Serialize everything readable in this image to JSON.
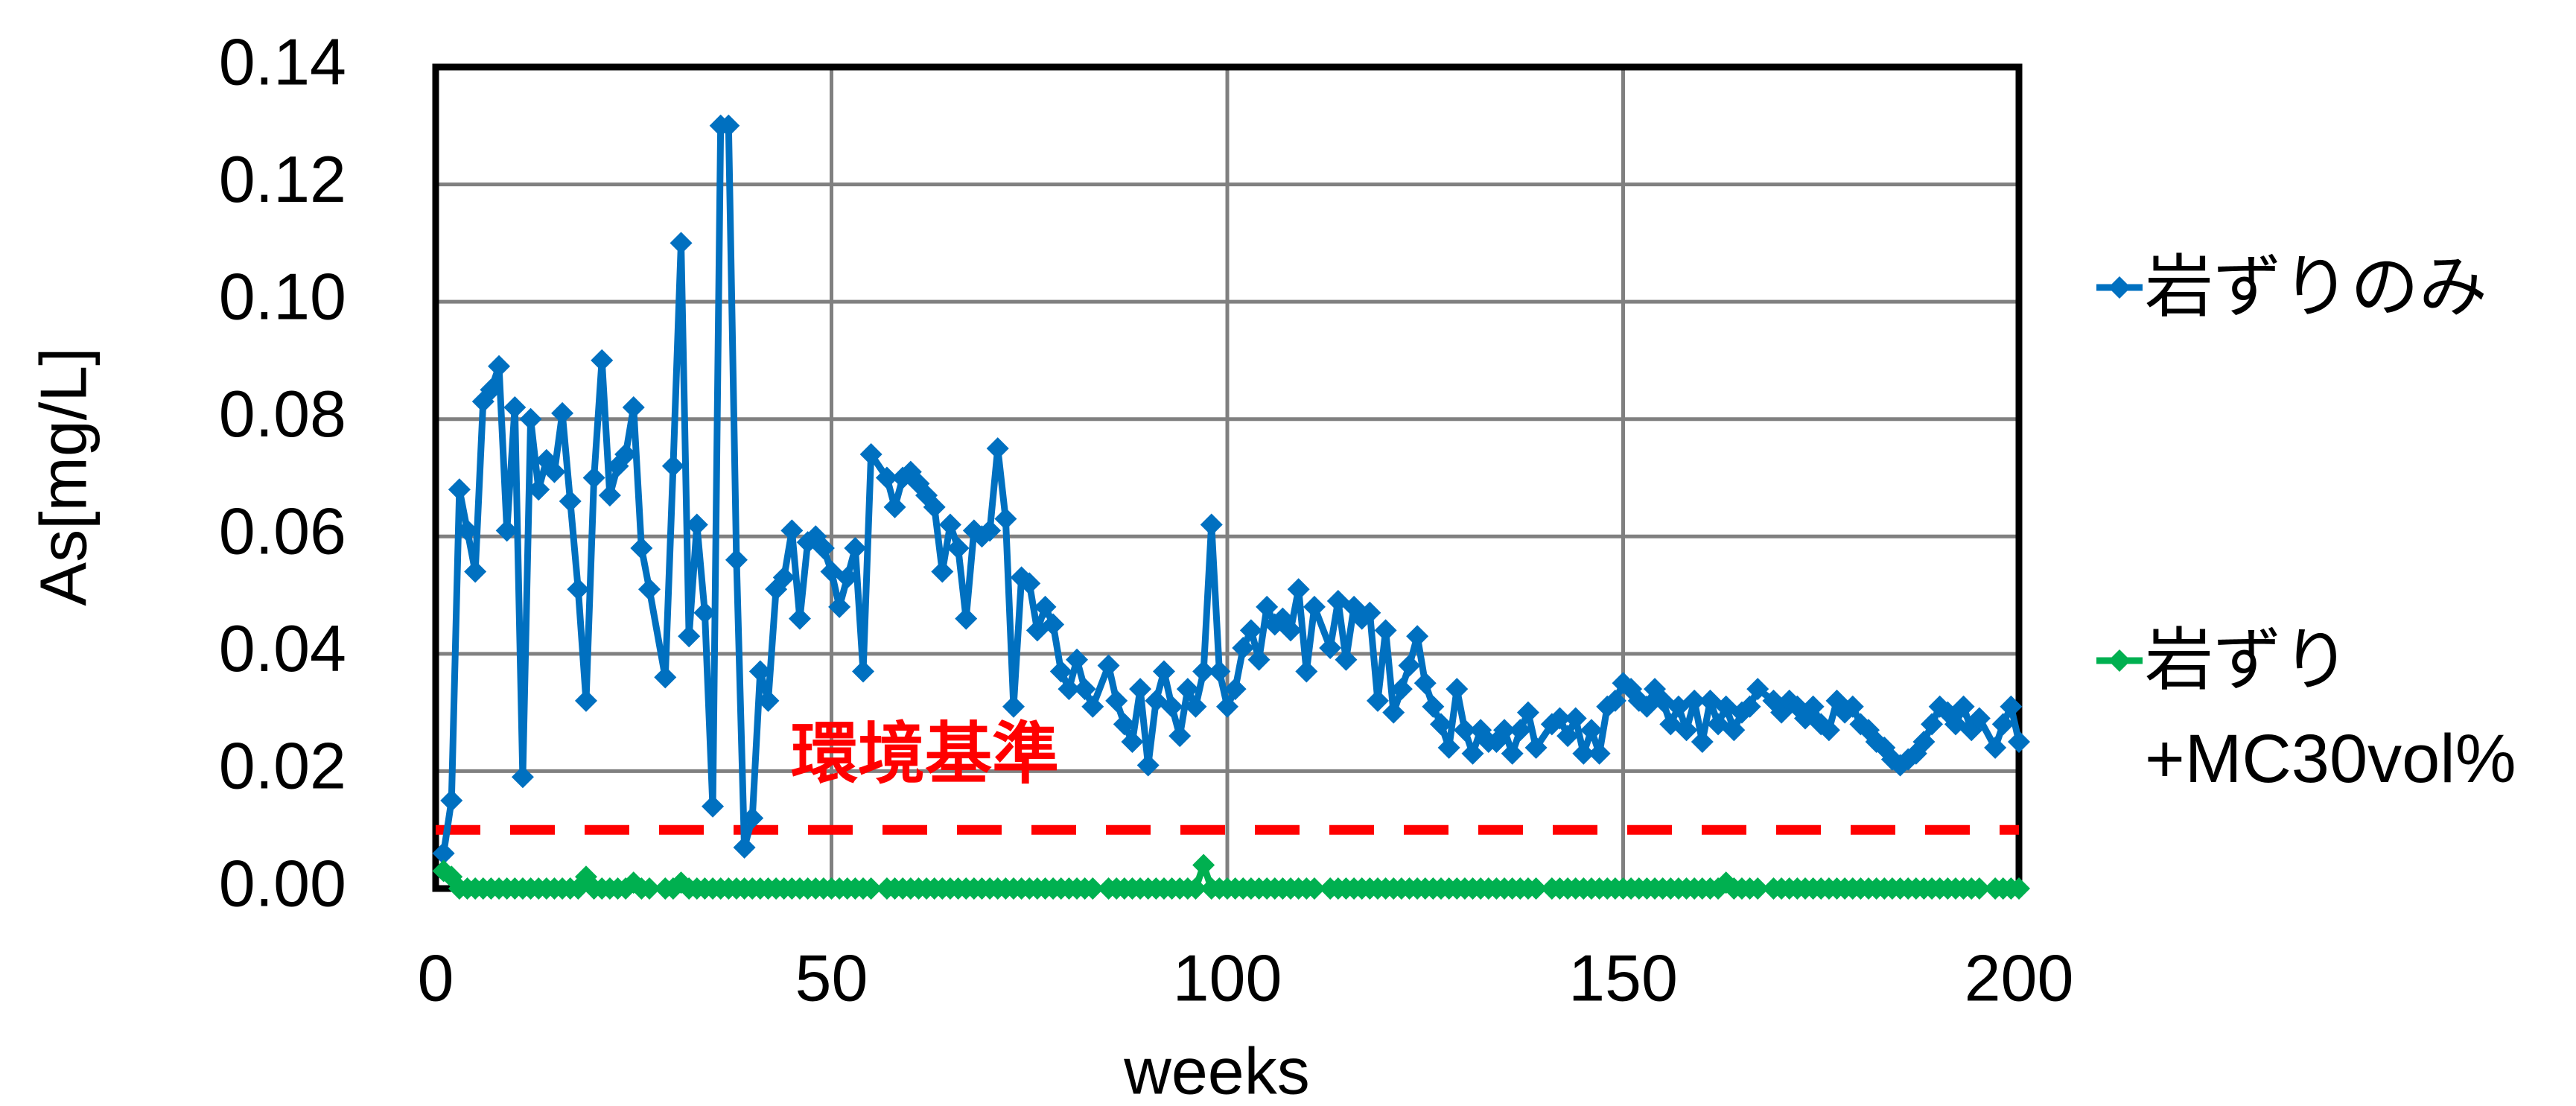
{
  "chart_data": {
    "type": "line",
    "x_label": "weeks",
    "y_label": "As[mg/L]",
    "xlim": [
      0,
      200
    ],
    "xticks": [
      0,
      50,
      100,
      150,
      200
    ],
    "ylim": [
      0,
      0.14
    ],
    "yticks": [
      {
        "value": 0,
        "label": "0.00"
      },
      {
        "value": 0.02,
        "label": "0.02"
      },
      {
        "value": 0.04,
        "label": "0.04"
      },
      {
        "value": 0.06,
        "label": "0.06"
      },
      {
        "value": 0.08,
        "label": "0.08"
      },
      {
        "value": 0.1,
        "label": "0.10"
      },
      {
        "value": 0.12,
        "label": "0.12"
      },
      {
        "value": 0.14,
        "label": "0.14"
      }
    ],
    "grid": true,
    "legend": "right",
    "reference_line": {
      "value": 0.01,
      "label": "環境基準",
      "color": "#ff0000"
    },
    "x": [
      1,
      2,
      3,
      4,
      5,
      6,
      7,
      8,
      9,
      10,
      11,
      12,
      13,
      14,
      15,
      16,
      17,
      18,
      19,
      20,
      21,
      22,
      23,
      24,
      25,
      26,
      27,
      29,
      30,
      31,
      32,
      33,
      34,
      35,
      36,
      37,
      38,
      39,
      40,
      41,
      42,
      43,
      44,
      45,
      46,
      47,
      48,
      49,
      50,
      51,
      52,
      53,
      54,
      55,
      57,
      58,
      59,
      60,
      61,
      62,
      63,
      64,
      65,
      66,
      67,
      68,
      69,
      70,
      71,
      72,
      73,
      74,
      75,
      76,
      77,
      78,
      79,
      80,
      81,
      82,
      83,
      85,
      86,
      87,
      88,
      89,
      90,
      91,
      92,
      93,
      94,
      95,
      96,
      97,
      98,
      99,
      100,
      101,
      102,
      103,
      104,
      105,
      106,
      107,
      108,
      109,
      110,
      111,
      113,
      114,
      115,
      116,
      117,
      118,
      119,
      120,
      121,
      122,
      123,
      124,
      125,
      126,
      127,
      128,
      129,
      130,
      131,
      132,
      133,
      134,
      135,
      136,
      137,
      138,
      139,
      141,
      142,
      143,
      144,
      145,
      146,
      147,
      148,
      149,
      150,
      151,
      152,
      153,
      154,
      155,
      156,
      157,
      158,
      159,
      160,
      161,
      162,
      163,
      164,
      165,
      166,
      167,
      169,
      170,
      171,
      172,
      173,
      174,
      175,
      176,
      177,
      178,
      179,
      180,
      181,
      182,
      183,
      184,
      185,
      186,
      187,
      188,
      189,
      190,
      191,
      192,
      193,
      194,
      195,
      197,
      198,
      199,
      200
    ],
    "series": [
      {
        "name": "岩ずりのみ",
        "color": "#0070c0",
        "values": [
          0.006,
          0.015,
          0.068,
          0.061,
          0.054,
          0.083,
          0.085,
          0.089,
          0.061,
          0.082,
          0.019,
          0.08,
          0.068,
          0.073,
          0.071,
          0.081,
          0.066,
          0.051,
          0.032,
          0.07,
          0.09,
          0.067,
          0.072,
          0.074,
          0.082,
          0.058,
          0.051,
          0.036,
          0.072,
          0.11,
          0.043,
          0.062,
          0.047,
          0.014,
          0.13,
          0.13,
          0.056,
          0.007,
          0.012,
          0.037,
          0.032,
          0.051,
          0.053,
          0.061,
          0.046,
          0.059,
          0.06,
          0.058,
          0.054,
          0.048,
          0.053,
          0.058,
          0.037,
          0.074,
          0.07,
          0.065,
          0.07,
          0.071,
          0.069,
          0.067,
          0.065,
          0.054,
          0.062,
          0.058,
          0.046,
          0.061,
          0.06,
          0.061,
          0.075,
          0.063,
          0.031,
          0.053,
          0.052,
          0.044,
          0.048,
          0.045,
          0.037,
          0.034,
          0.039,
          0.034,
          0.031,
          0.038,
          0.032,
          0.028,
          0.025,
          0.034,
          0.021,
          0.032,
          0.037,
          0.031,
          0.026,
          0.034,
          0.031,
          0.037,
          0.062,
          0.037,
          0.031,
          0.034,
          0.041,
          0.044,
          0.039,
          0.048,
          0.045,
          0.046,
          0.044,
          0.051,
          0.037,
          0.048,
          0.041,
          0.049,
          0.039,
          0.048,
          0.046,
          0.047,
          0.032,
          0.044,
          0.03,
          0.034,
          0.038,
          0.043,
          0.035,
          0.031,
          0.028,
          0.024,
          0.034,
          0.027,
          0.023,
          0.027,
          0.025,
          0.025,
          0.027,
          0.023,
          0.027,
          0.03,
          0.024,
          0.028,
          0.029,
          0.026,
          0.029,
          0.023,
          0.027,
          0.023,
          0.031,
          0.032,
          0.035,
          0.034,
          0.032,
          0.031,
          0.034,
          0.032,
          0.028,
          0.031,
          0.027,
          0.032,
          0.025,
          0.032,
          0.028,
          0.031,
          0.027,
          0.03,
          0.031,
          0.034,
          0.032,
          0.03,
          0.032,
          0.031,
          0.029,
          0.031,
          0.028,
          0.027,
          0.032,
          0.03,
          0.031,
          0.028,
          0.027,
          0.025,
          0.024,
          0.022,
          0.021,
          0.022,
          0.023,
          0.025,
          0.028,
          0.031,
          0.03,
          0.028,
          0.031,
          0.027,
          0.029,
          0.024,
          0.028,
          0.031,
          0.025
        ]
      },
      {
        "name": "岩ずり\n+MC30vol%",
        "color": "#00b050",
        "values": [
          0.003,
          0.002,
          0,
          0,
          0,
          0,
          0,
          0,
          0,
          0,
          0,
          0,
          0,
          0,
          0,
          0,
          0,
          0,
          0.002,
          0,
          0,
          0,
          0,
          0,
          0.001,
          0,
          0,
          0,
          0,
          0.001,
          0,
          0,
          0,
          0,
          0,
          0,
          0,
          0,
          0,
          0,
          0,
          0,
          0,
          0,
          0,
          0,
          0,
          0,
          0,
          0,
          0,
          0,
          0,
          0,
          0,
          0,
          0,
          0,
          0,
          0,
          0,
          0,
          0,
          0,
          0,
          0,
          0,
          0,
          0,
          0,
          0,
          0,
          0,
          0,
          0,
          0,
          0,
          0,
          0,
          0,
          0,
          0,
          0,
          0,
          0,
          0,
          0,
          0,
          0,
          0,
          0,
          0,
          0,
          0.004,
          0,
          0,
          0,
          0,
          0,
          0,
          0,
          0,
          0,
          0,
          0,
          0,
          0,
          0,
          0,
          0,
          0,
          0,
          0,
          0,
          0,
          0,
          0,
          0,
          0,
          0,
          0,
          0,
          0,
          0,
          0,
          0,
          0,
          0,
          0,
          0,
          0,
          0,
          0,
          0,
          0,
          0,
          0,
          0,
          0,
          0,
          0,
          0,
          0,
          0,
          0,
          0,
          0,
          0,
          0,
          0,
          0,
          0,
          0,
          0,
          0,
          0,
          0,
          0.001,
          0,
          0,
          0,
          0,
          0,
          0,
          0,
          0,
          0,
          0,
          0,
          0,
          0,
          0,
          0,
          0,
          0,
          0,
          0,
          0,
          0,
          0,
          0,
          0,
          0,
          0,
          0,
          0,
          0,
          0,
          0,
          0,
          0,
          0,
          0
        ]
      }
    ]
  }
}
